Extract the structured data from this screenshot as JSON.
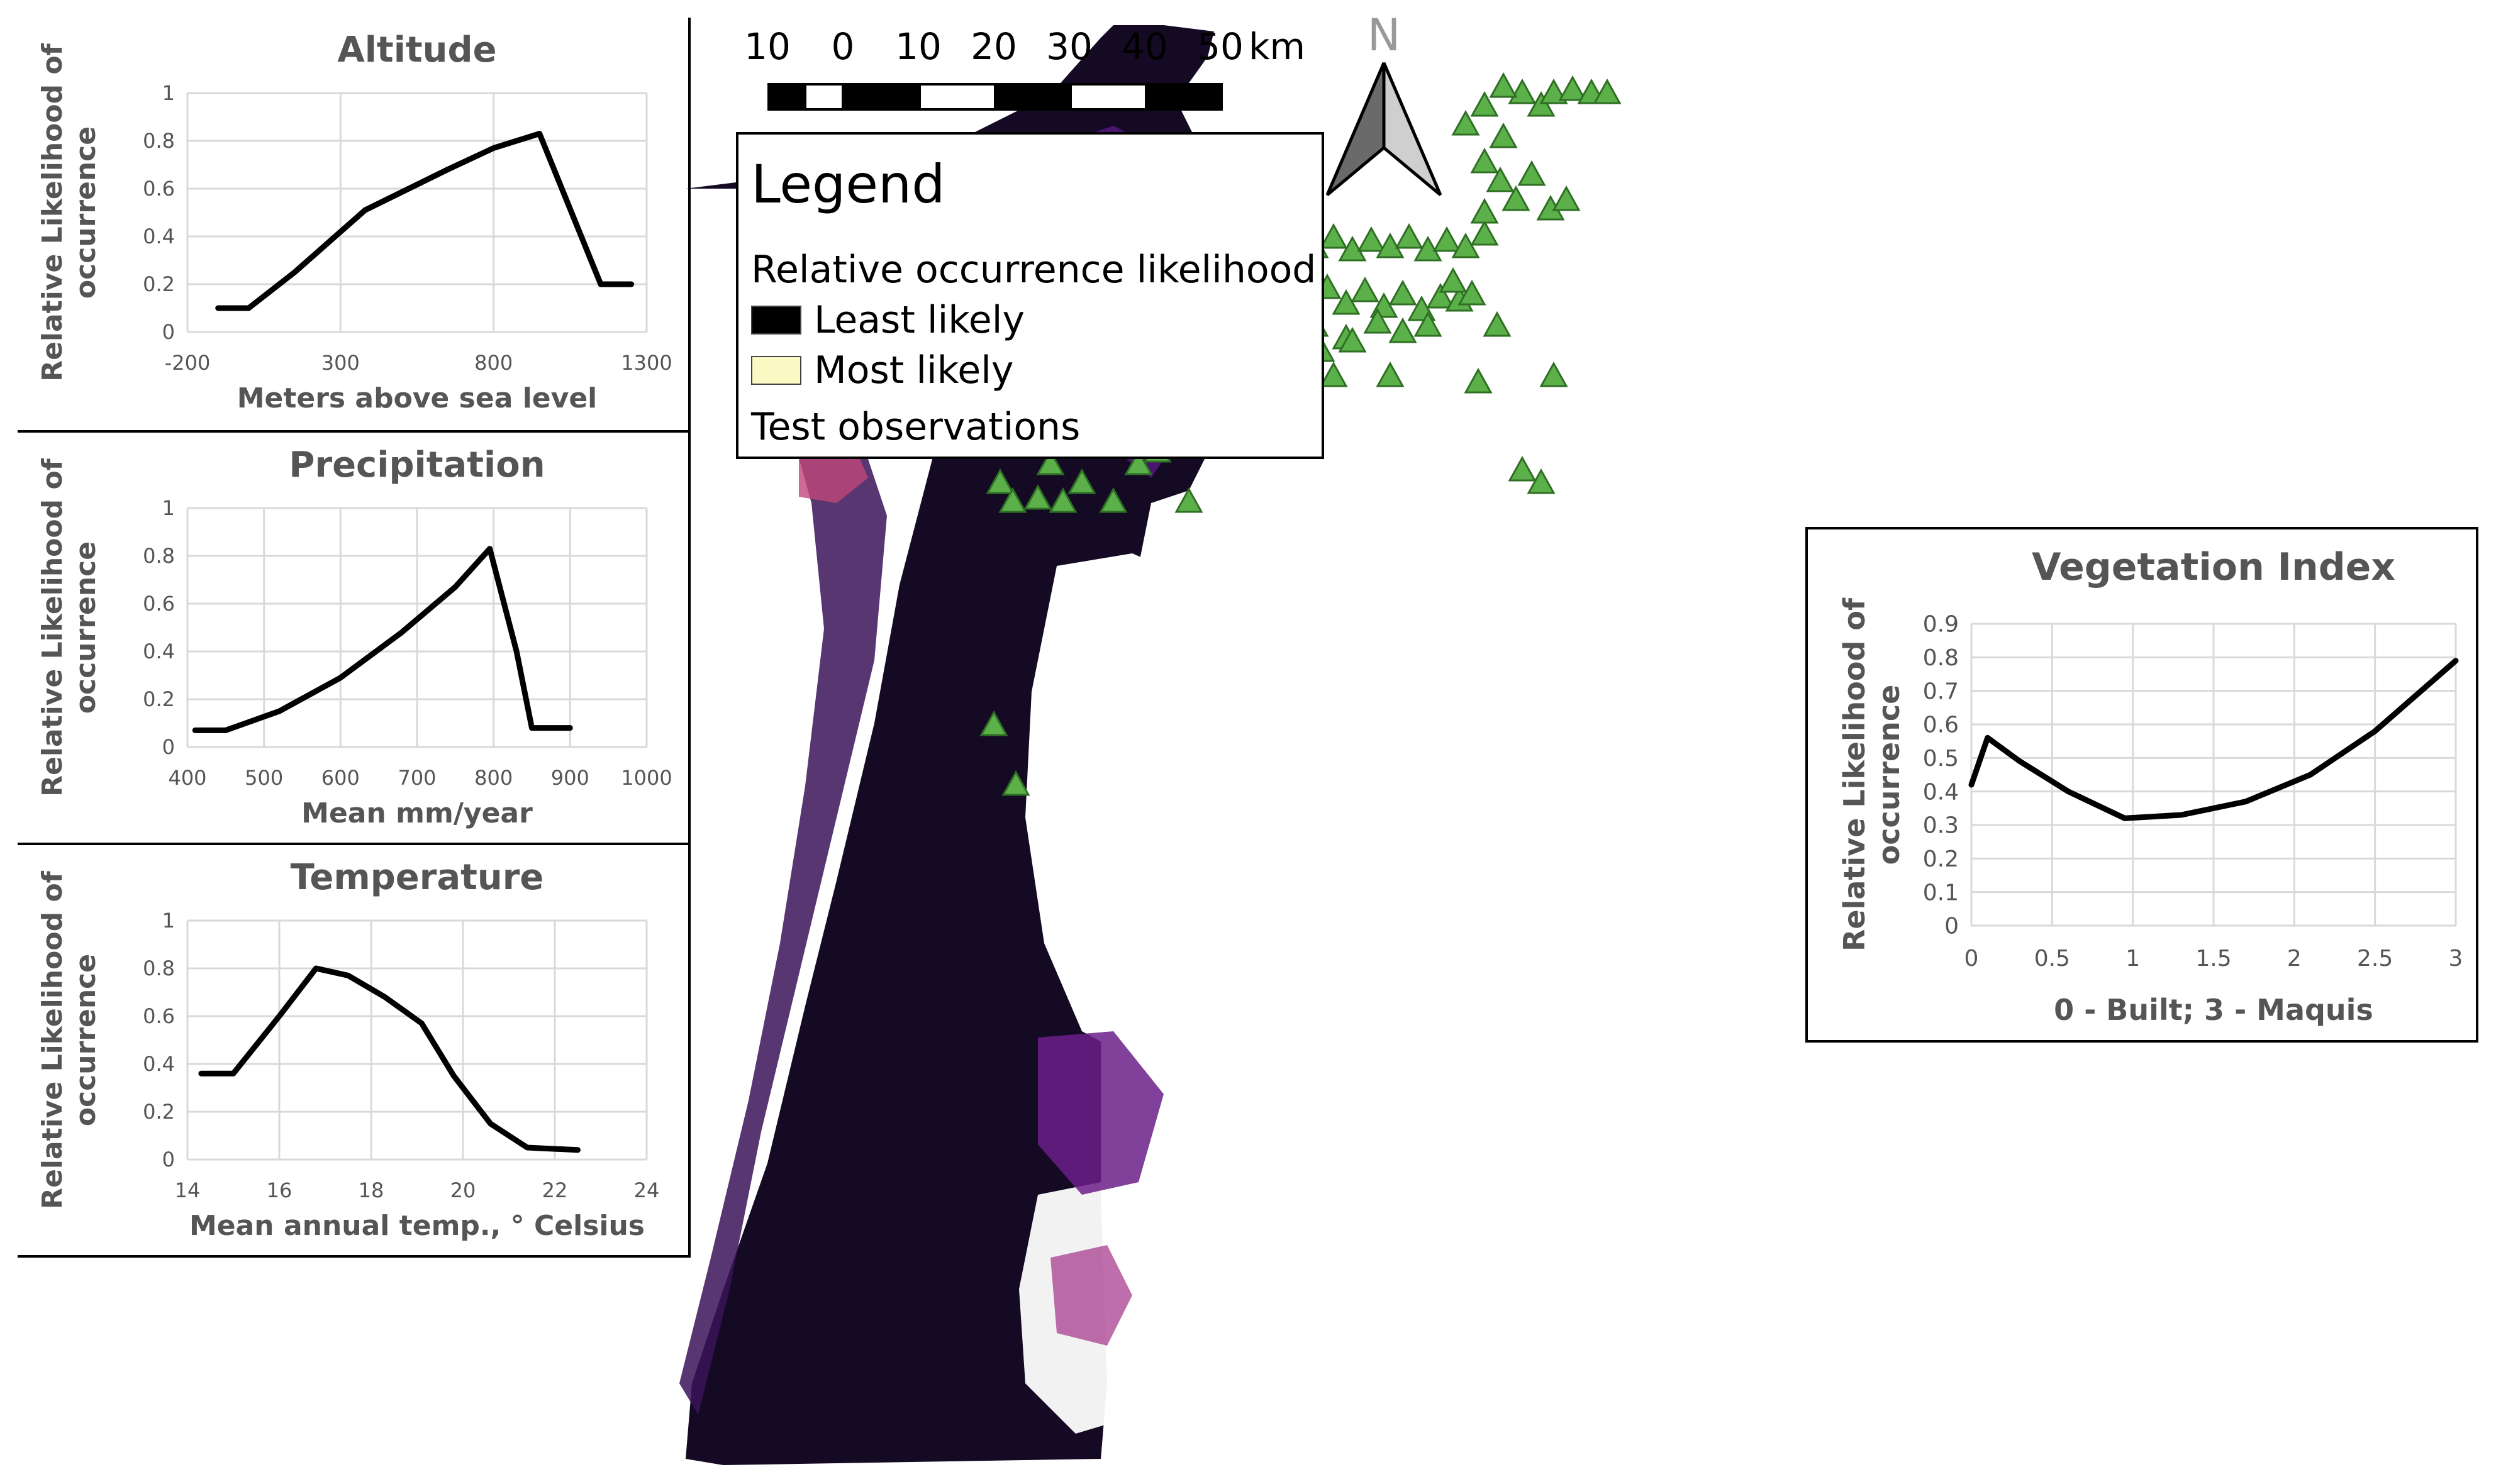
{
  "scale_bar": {
    "labels": [
      "10",
      "0",
      "10",
      "20",
      "30",
      "40",
      "50"
    ],
    "unit": "km"
  },
  "north_arrow": {
    "label": "N"
  },
  "legend": {
    "title": "Legend",
    "subtitle": "Relative occurrence likelihood",
    "least_label": "Least likely",
    "most_label": "Most likely",
    "test_label": "Test observations",
    "colors": {
      "least": "#000000",
      "most": "#fdf9c4",
      "marker": "#5cb04a"
    }
  },
  "chart_data": [
    {
      "type": "line",
      "title": "Altitude",
      "xlabel": "Meters above sea level",
      "ylabel": "Relative Likelihood of occurrence",
      "xlim": [
        -200,
        1300
      ],
      "ylim": [
        0,
        1
      ],
      "x_ticks": [
        -200,
        300,
        800,
        1300
      ],
      "y_ticks": [
        0,
        0.2,
        0.4,
        0.6,
        0.8,
        1
      ],
      "x": [
        -100,
        0,
        150,
        380,
        650,
        800,
        950,
        1150,
        1250
      ],
      "y": [
        0.1,
        0.1,
        0.25,
        0.51,
        0.68,
        0.77,
        0.83,
        0.2,
        0.2
      ]
    },
    {
      "type": "line",
      "title": "Precipitation",
      "xlabel": "Mean mm/year",
      "ylabel": "Relative Likelihood of occurrence",
      "xlim": [
        400,
        1000
      ],
      "ylim": [
        0,
        1
      ],
      "x_ticks": [
        400,
        500,
        600,
        700,
        800,
        900,
        1000
      ],
      "y_ticks": [
        0,
        0.2,
        0.4,
        0.6,
        0.8,
        1
      ],
      "x": [
        410,
        450,
        520,
        600,
        680,
        750,
        795,
        830,
        850,
        900
      ],
      "y": [
        0.07,
        0.07,
        0.15,
        0.29,
        0.48,
        0.67,
        0.83,
        0.4,
        0.08,
        0.08
      ]
    },
    {
      "type": "line",
      "title": "Temperature",
      "xlabel": "Mean annual temp., ° Celsius",
      "ylabel": "Relative Likelihood of occurrence",
      "xlim": [
        14,
        24
      ],
      "ylim": [
        0,
        1
      ],
      "x_ticks": [
        14,
        16,
        18,
        20,
        22,
        24
      ],
      "y_ticks": [
        0,
        0.2,
        0.4,
        0.6,
        0.8,
        1
      ],
      "x": [
        14.3,
        15,
        16,
        16.8,
        17.5,
        18.3,
        19.1,
        19.8,
        20.6,
        21.4,
        22.5
      ],
      "y": [
        0.36,
        0.36,
        0.6,
        0.8,
        0.77,
        0.68,
        0.57,
        0.35,
        0.15,
        0.05,
        0.04
      ]
    },
    {
      "type": "line",
      "title": "Vegetation Index",
      "xlabel": "0 - Built; 3 - Maquis",
      "ylabel": "Relative Likelihood of occurrence",
      "xlim": [
        0,
        3
      ],
      "ylim": [
        0,
        0.9
      ],
      "x_ticks": [
        0,
        0.5,
        1,
        1.5,
        2,
        2.5,
        3
      ],
      "y_ticks": [
        0,
        0.1,
        0.2,
        0.3,
        0.4,
        0.5,
        0.6,
        0.7,
        0.8,
        0.9
      ],
      "x": [
        0,
        0.1,
        0.3,
        0.6,
        0.95,
        1.3,
        1.7,
        2.1,
        2.5,
        3
      ],
      "y": [
        0.42,
        0.56,
        0.49,
        0.4,
        0.32,
        0.33,
        0.37,
        0.45,
        0.58,
        0.79
      ]
    }
  ]
}
